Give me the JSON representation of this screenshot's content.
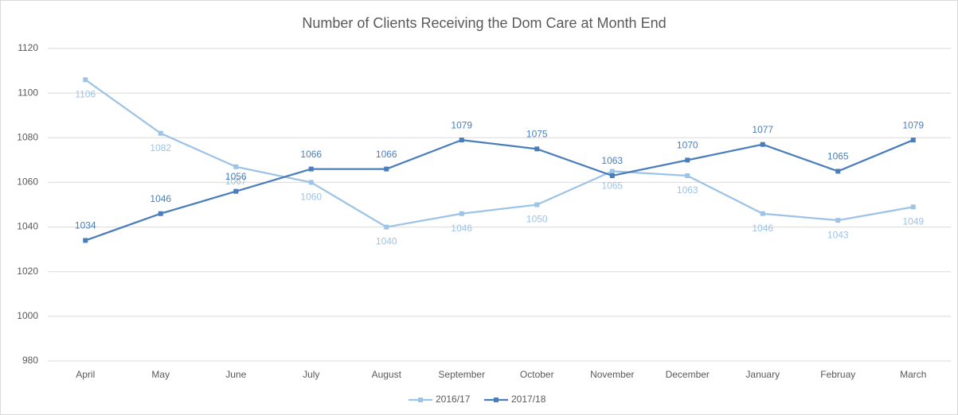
{
  "chart_data": {
    "type": "line",
    "title": "Number of Clients Receiving the Dom Care at Month End",
    "categories": [
      "April",
      "May",
      "June",
      "July",
      "August",
      "September",
      "October",
      "November",
      "December",
      "January",
      "Februay",
      "March"
    ],
    "series": [
      {
        "name": "2016/17",
        "color": "#9dc3e6",
        "values": [
          1106,
          1082,
          1067,
          1060,
          1040,
          1046,
          1050,
          1065,
          1063,
          1046,
          1043,
          1049
        ]
      },
      {
        "name": "2017/18",
        "color": "#4a7ebb",
        "values": [
          1034,
          1046,
          1056,
          1066,
          1066,
          1079,
          1075,
          1063,
          1070,
          1077,
          1065,
          1079
        ]
      }
    ],
    "ylim": [
      980,
      1120
    ],
    "yticks": [
      980,
      1000,
      1020,
      1040,
      1060,
      1080,
      1100,
      1120
    ],
    "grid": true,
    "legend": "bottom"
  }
}
